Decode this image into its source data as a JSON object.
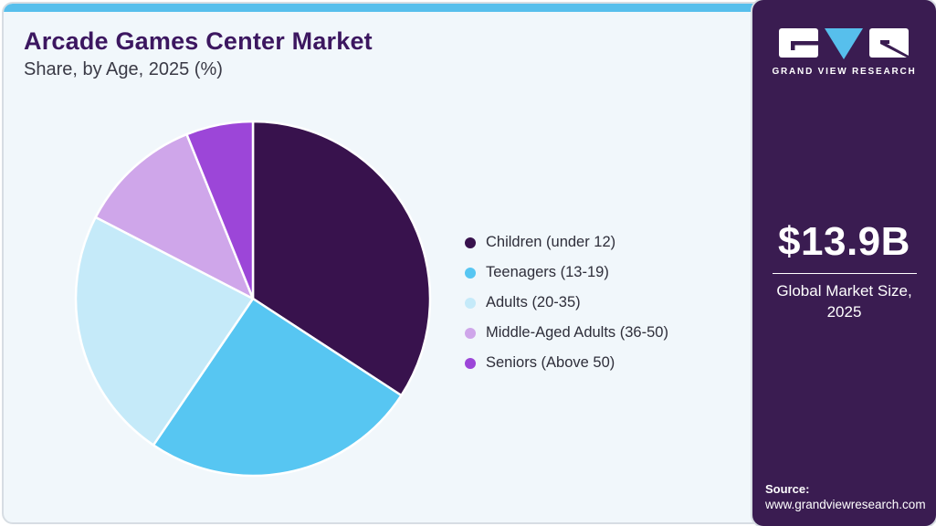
{
  "header": {
    "title": "Arcade Games Center Market",
    "subtitle": "Share, by Age, 2025 (%)"
  },
  "chart_data": {
    "type": "pie",
    "title": "Arcade Games Center Market Share, by Age, 2025 (%)",
    "units": "%",
    "start_angle_deg": -90,
    "direction": "clockwise",
    "legend_position": "right",
    "series": [
      {
        "label": "Children (under 12)",
        "value": 34.2,
        "color": "#38124d"
      },
      {
        "label": "Teenagers (13-19)",
        "value": 25.3,
        "color": "#57c6f2"
      },
      {
        "label": "Adults (20-35)",
        "value": 23.1,
        "color": "#c5eaf9"
      },
      {
        "label": "Middle-Aged Adults (36-50)",
        "value": 11.3,
        "color": "#cfa6ea"
      },
      {
        "label": "Seniors (Above 50)",
        "value": 6.1,
        "color": "#9c46d8"
      }
    ]
  },
  "sidebar": {
    "brand": "GRAND VIEW RESEARCH",
    "market_size": {
      "value": "$13.9B",
      "label": "Global Market Size, 2025"
    },
    "source": {
      "label": "Source:",
      "url": "www.grandviewresearch.com"
    }
  },
  "colors": {
    "accent_blue": "#57bfec",
    "card_bg": "#f1f7fb",
    "card_border": "#d7dde3",
    "sidebar_bg": "#3a1c51",
    "title_text": "#3c1760",
    "subtitle_text": "#3a3a46",
    "legend_text": "#2e2e3a",
    "slice_separator": "#ffffff"
  }
}
